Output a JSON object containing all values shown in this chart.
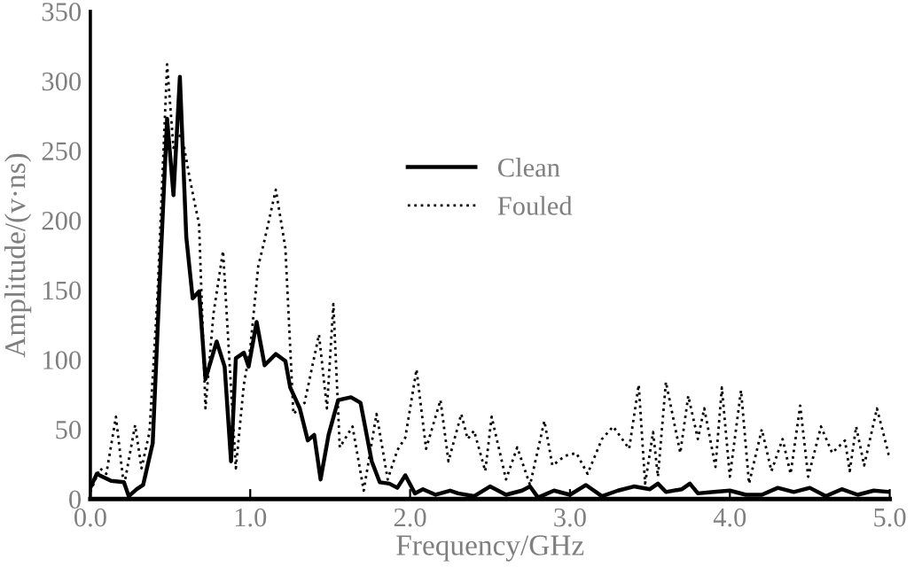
{
  "chart_data": {
    "type": "line",
    "xlabel": "Frequency/GHz",
    "ylabel": "Amplitude/(v·ns)",
    "xlim": [
      0,
      5
    ],
    "ylim": [
      0,
      350
    ],
    "xticks": [
      {
        "value": 0,
        "label": "0.0"
      },
      {
        "value": 1,
        "label": "1.0"
      },
      {
        "value": 2,
        "label": "2.0"
      },
      {
        "value": 3,
        "label": "3.0"
      },
      {
        "value": 4,
        "label": "4.0"
      },
      {
        "value": 5,
        "label": "5.0"
      }
    ],
    "yticks": [
      0,
      50,
      100,
      150,
      200,
      250,
      300,
      350
    ],
    "grid": false,
    "legend": "top center",
    "marker": "none",
    "series": [
      {
        "name": "Clean",
        "color": "#000000",
        "line_style": "solid",
        "x": [
          0,
          0.04,
          0.13,
          0.21,
          0.24,
          0.29,
          0.33,
          0.39,
          0.43,
          0.48,
          0.52,
          0.56,
          0.6,
          0.64,
          0.68,
          0.72,
          0.79,
          0.84,
          0.88,
          0.91,
          0.96,
          0.99,
          1.04,
          1.09,
          1.16,
          1.22,
          1.25,
          1.31,
          1.36,
          1.4,
          1.44,
          1.49,
          1.55,
          1.63,
          1.69,
          1.76,
          1.81,
          1.87,
          1.92,
          1.97,
          2.03,
          2.08,
          2.16,
          2.25,
          2.3,
          2.4,
          2.5,
          2.6,
          2.7,
          2.75,
          2.8,
          2.9,
          3.0,
          3.1,
          3.2,
          3.3,
          3.4,
          3.5,
          3.55,
          3.6,
          3.7,
          3.75,
          3.8,
          3.9,
          4.0,
          4.1,
          4.2,
          4.3,
          4.4,
          4.5,
          4.6,
          4.7,
          4.8,
          4.9,
          5.0
        ],
        "values": [
          8,
          18,
          13,
          12,
          2,
          7,
          10,
          40,
          146,
          273,
          218,
          303,
          188,
          144,
          149,
          86,
          113,
          95,
          27,
          101,
          105,
          95,
          127,
          96,
          104,
          99,
          80,
          65,
          42,
          46,
          14,
          46,
          71,
          73,
          69,
          27,
          12,
          11,
          8,
          17,
          4,
          7,
          3,
          6,
          4,
          2,
          9,
          3,
          6,
          9,
          1,
          6,
          3,
          10,
          2,
          6,
          9,
          7,
          11,
          5,
          7,
          11,
          4,
          5,
          6,
          3,
          3,
          8,
          5,
          8,
          2,
          7,
          3,
          6,
          5
        ]
      },
      {
        "name": "Fouled",
        "color": "#000000",
        "line_style": "dotted",
        "x": [
          0,
          0.06,
          0.1,
          0.16,
          0.21,
          0.28,
          0.32,
          0.37,
          0.42,
          0.48,
          0.52,
          0.57,
          0.62,
          0.68,
          0.72,
          0.77,
          0.83,
          0.87,
          0.91,
          0.96,
          1.0,
          1.05,
          1.09,
          1.16,
          1.22,
          1.27,
          1.34,
          1.43,
          1.48,
          1.52,
          1.56,
          1.64,
          1.71,
          1.79,
          1.86,
          1.92,
          1.97,
          2.04,
          2.1,
          2.19,
          2.24,
          2.32,
          2.36,
          2.4,
          2.47,
          2.51,
          2.6,
          2.67,
          2.75,
          2.84,
          2.89,
          2.97,
          3.04,
          3.11,
          3.2,
          3.27,
          3.37,
          3.43,
          3.47,
          3.52,
          3.55,
          3.6,
          3.69,
          3.74,
          3.8,
          3.84,
          3.91,
          3.95,
          4.0,
          4.07,
          4.12,
          4.2,
          4.26,
          4.33,
          4.38,
          4.44,
          4.49,
          4.57,
          4.64,
          4.72,
          4.75,
          4.79,
          4.84,
          4.92,
          5.0
        ],
        "values": [
          5,
          22,
          18,
          59,
          9,
          53,
          22,
          48,
          146,
          312,
          252,
          263,
          231,
          197,
          65,
          133,
          178,
          99,
          22,
          82,
          108,
          167,
          186,
          222,
          180,
          61,
          69,
          118,
          65,
          140,
          37,
          52,
          6,
          61,
          14,
          35,
          44,
          93,
          36,
          71,
          27,
          61,
          43,
          49,
          20,
          59,
          14,
          37,
          10,
          56,
          24,
          31,
          33,
          18,
          43,
          52,
          36,
          82,
          11,
          48,
          16,
          84,
          33,
          74,
          43,
          65,
          23,
          80,
          16,
          78,
          11,
          50,
          20,
          43,
          18,
          67,
          16,
          52,
          33,
          42,
          20,
          52,
          24,
          65,
          29
        ]
      }
    ]
  }
}
